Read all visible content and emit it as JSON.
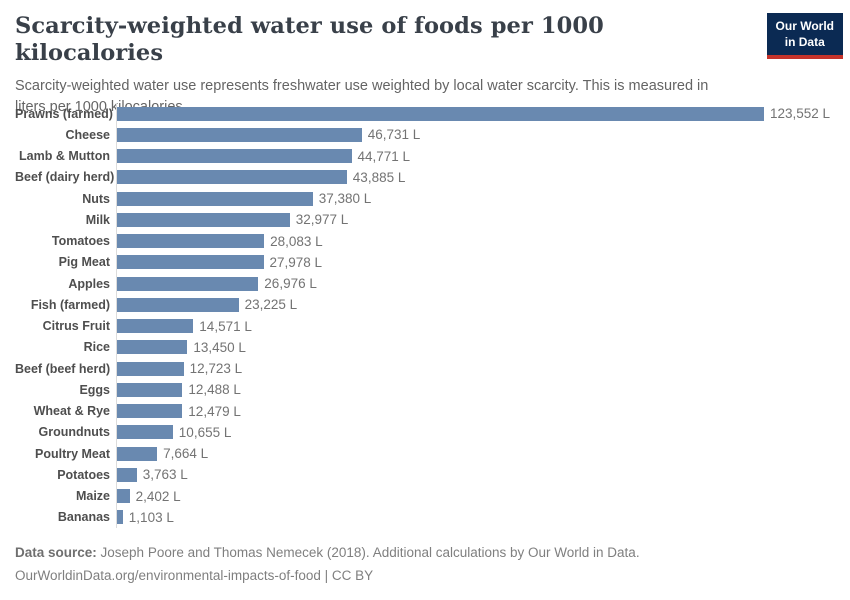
{
  "header": {
    "title": "Scarcity-weighted water use of foods per 1000 kilocalories",
    "subtitle": "Scarcity-weighted water use represents freshwater use weighted by local water scarcity. This is measured in liters per 1000 kilocalories.",
    "logo": {
      "line1": "Our World",
      "line2": "in Data"
    }
  },
  "chart_data": {
    "type": "bar",
    "orientation": "horizontal",
    "title": "Scarcity-weighted water use of foods per 1000 kilocalories",
    "xlabel": "",
    "ylabel": "",
    "unit": "liters per 1000 kilocalories",
    "xlim": [
      0,
      123552
    ],
    "grid": false,
    "legend": false,
    "categories": [
      "Prawns (farmed)",
      "Cheese",
      "Lamb & Mutton",
      "Beef (dairy herd)",
      "Nuts",
      "Milk",
      "Tomatoes",
      "Pig Meat",
      "Apples",
      "Fish (farmed)",
      "Citrus Fruit",
      "Rice",
      "Beef (beef herd)",
      "Eggs",
      "Wheat & Rye",
      "Groundnuts",
      "Poultry Meat",
      "Potatoes",
      "Maize",
      "Bananas"
    ],
    "values": [
      123552,
      46731,
      44771,
      43885,
      37380,
      32977,
      28083,
      27978,
      26976,
      23225,
      14571,
      13450,
      12723,
      12488,
      12479,
      10655,
      7664,
      3763,
      2402,
      1103
    ],
    "value_labels": [
      "123,552 L",
      "46,731 L",
      "44,771 L",
      "43,885 L",
      "37,380 L",
      "32,977 L",
      "28,083 L",
      "27,978 L",
      "26,976 L",
      "23,225 L",
      "14,571 L",
      "13,450 L",
      "12,723 L",
      "12,488 L",
      "12,479 L",
      "10,655 L",
      "7,664 L",
      "3,763 L",
      "2,402 L",
      "1,103 L"
    ]
  },
  "footer": {
    "source_label": "Data source:",
    "source_text": " Joseph Poore and Thomas Nemecek (2018). Additional calculations by Our World in Data.",
    "license_line": "OurWorldinData.org/environmental-impacts-of-food | CC BY"
  },
  "colors": {
    "bar": "#6989b0",
    "title_text": "#394049",
    "subtitle_text": "#646464",
    "label_text": "#4e4e4e",
    "value_text": "#737373",
    "axis_line": "#dcdcdc",
    "logo_bg": "#0b2a53",
    "logo_stripe": "#c5332b",
    "footer_text": "#7f7f7f",
    "footer_label_text": "#6f6f6f"
  }
}
